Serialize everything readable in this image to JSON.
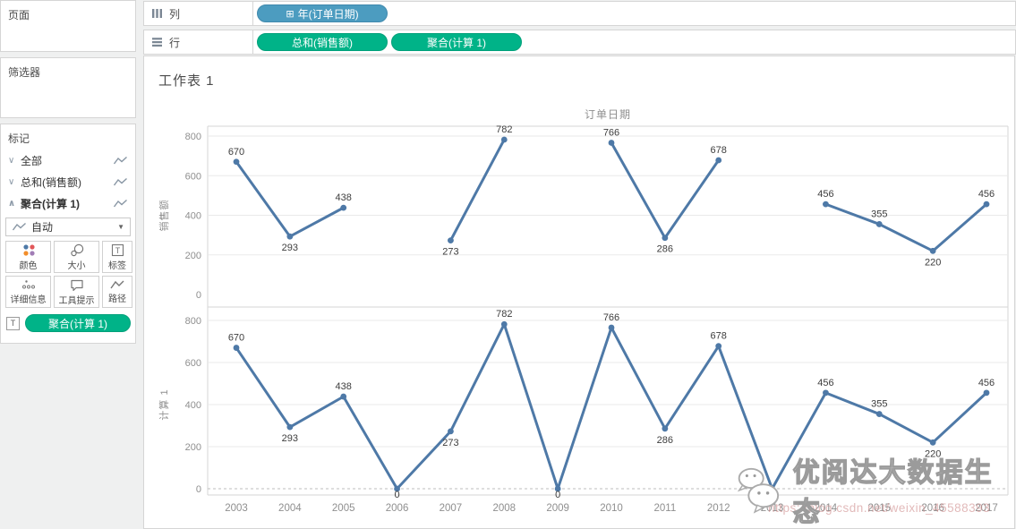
{
  "sidebar": {
    "pages_label": "页面",
    "filters_label": "筛选器",
    "marks_label": "标记",
    "marks_items": [
      {
        "chevron": "∨",
        "label": "全部"
      },
      {
        "chevron": "∨",
        "label": "总和(销售额)"
      },
      {
        "chevron": "∧",
        "label": "聚合(计算 1)"
      }
    ],
    "mark_type": {
      "value": "自动",
      "caret": "▼"
    },
    "buttons": [
      {
        "label": "颜色"
      },
      {
        "label": "大小"
      },
      {
        "label": "标签"
      },
      {
        "label": "详细信息"
      },
      {
        "label": "工具提示"
      },
      {
        "label": "路径"
      }
    ],
    "label_pill": {
      "icon": "T",
      "label": "聚合(计算 1)"
    }
  },
  "shelves": {
    "columns_label": "列",
    "rows_label": "行",
    "columns_pills": [
      {
        "icon": "⊞",
        "label": "年(订单日期)"
      }
    ],
    "rows_pills": [
      {
        "label": "总和(销售额)"
      },
      {
        "label": "聚合(计算 1)"
      }
    ]
  },
  "sheet": {
    "title": "工作表 1"
  },
  "watermark": {
    "brand": "优阅达大数据生态",
    "url": "https://blog.csdn.net/weixin_45588393"
  },
  "colors": {
    "line": "#4e79a7",
    "pill_blue": "#4c9cc0",
    "pill_green": "#00b388",
    "axis_text": "#8f8f8f",
    "label_text": "#3d3d3d",
    "gridline": "#eaeaea",
    "border": "#d5d5d5"
  },
  "chart_data": [
    {
      "type": "line",
      "title": "订单日期",
      "ylabel": "销售额",
      "x": [
        2003,
        2004,
        2005,
        2006,
        2007,
        2008,
        2009,
        2010,
        2011,
        2012,
        2013,
        2014,
        2015,
        2016,
        2017
      ],
      "values": [
        670,
        293,
        438,
        null,
        273,
        782,
        null,
        766,
        286,
        678,
        null,
        456,
        355,
        220,
        456
      ],
      "label_side": [
        "above",
        "below",
        "above",
        null,
        "below",
        "above",
        null,
        "above",
        "below",
        "above",
        null,
        "above",
        "above",
        "below",
        "above"
      ],
      "ylim": [
        0,
        800
      ],
      "yticks": [
        0,
        200,
        400,
        600,
        800
      ],
      "grid": "horizontal",
      "legend": "none"
    },
    {
      "type": "line",
      "title": "",
      "ylabel": "计算 1",
      "x": [
        2003,
        2004,
        2005,
        2006,
        2007,
        2008,
        2009,
        2010,
        2011,
        2012,
        2013,
        2014,
        2015,
        2016,
        2017
      ],
      "values": [
        670,
        293,
        438,
        0,
        273,
        782,
        0,
        766,
        286,
        678,
        0,
        456,
        355,
        220,
        456
      ],
      "label_side": [
        "above",
        "below",
        "above",
        "below",
        "below",
        "above",
        "below",
        "above",
        "below",
        "above",
        "below",
        "above",
        "above",
        "below",
        "above"
      ],
      "ylim": [
        0,
        800
      ],
      "yticks": [
        0,
        200,
        400,
        600,
        800
      ],
      "grid": "horizontal",
      "zero_line": "dashed",
      "legend": "none"
    }
  ]
}
